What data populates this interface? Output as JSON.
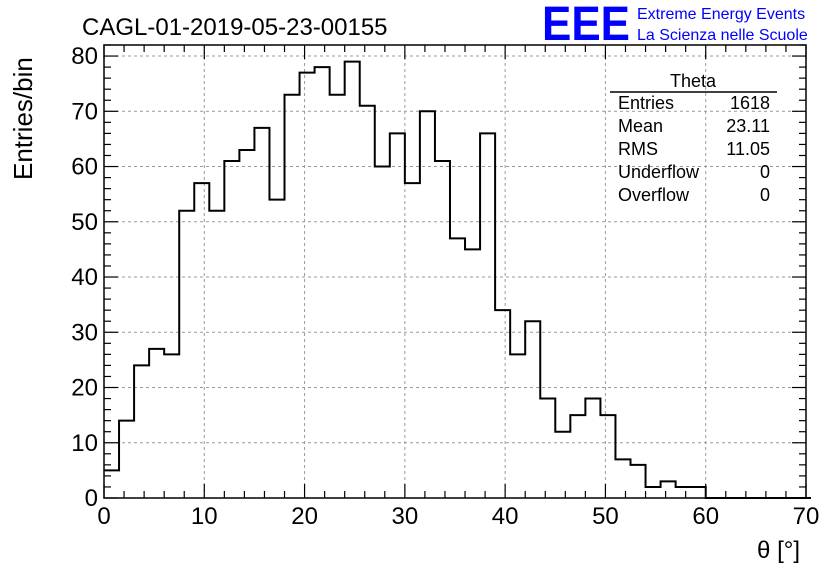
{
  "title": "CAGL-01-2019-05-23-00155",
  "brand": {
    "logo_text": "EEE",
    "line1": "Extreme Energy Events",
    "line2": "La Scienza nelle Scuole",
    "color": "#0000ff"
  },
  "stats_box": {
    "title": "Theta",
    "rows": [
      {
        "label": "Entries",
        "value": "1618"
      },
      {
        "label": "Mean",
        "value": "23.11"
      },
      {
        "label": "RMS",
        "value": "11.05"
      },
      {
        "label": "Underflow",
        "value": "0"
      },
      {
        "label": "Overflow",
        "value": "0"
      }
    ]
  },
  "chart_data": {
    "type": "histogram",
    "xlabel": "θ [°]",
    "ylabel": "Entries/bin",
    "xlim": [
      0,
      70
    ],
    "ylim": [
      0,
      82
    ],
    "bin_width": 1.5,
    "bin_start": 0,
    "x_ticks": [
      0,
      10,
      20,
      30,
      40,
      50,
      60,
      70
    ],
    "y_ticks": [
      0,
      10,
      20,
      30,
      40,
      50,
      60,
      70,
      80
    ],
    "grid": true,
    "line_color": "#000000",
    "values": [
      5,
      14,
      24,
      27,
      26,
      52,
      57,
      52,
      61,
      63,
      67,
      54,
      73,
      77,
      78,
      73,
      79,
      71,
      60,
      66,
      57,
      70,
      61,
      47,
      45,
      66,
      34,
      26,
      32,
      18,
      12,
      15,
      18,
      15,
      7,
      6,
      2,
      3,
      2,
      2,
      0,
      0,
      0,
      0,
      0,
      0,
      0
    ]
  }
}
